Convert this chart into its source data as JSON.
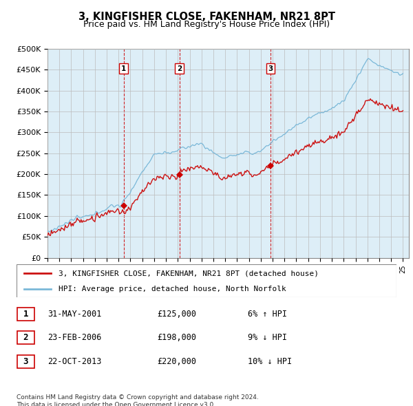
{
  "title": "3, KINGFISHER CLOSE, FAKENHAM, NR21 8PT",
  "subtitle": "Price paid vs. HM Land Registry's House Price Index (HPI)",
  "ylim": [
    0,
    500000
  ],
  "yticks": [
    0,
    50000,
    100000,
    150000,
    200000,
    250000,
    300000,
    350000,
    400000,
    450000,
    500000
  ],
  "ytick_labels": [
    "£0",
    "£50K",
    "£100K",
    "£150K",
    "£200K",
    "£250K",
    "£300K",
    "£350K",
    "£400K",
    "£450K",
    "£500K"
  ],
  "hpi_color": "#7ab8d8",
  "price_color": "#cc1111",
  "marker_color": "#cc0000",
  "plot_bg_color": "#ddeef7",
  "grid_color": "#bbbbbb",
  "sale_dates": [
    2001.42,
    2006.13,
    2013.81
  ],
  "sale_prices": [
    125000,
    198000,
    220000
  ],
  "sale_labels": [
    "1",
    "2",
    "3"
  ],
  "legend_line1": "3, KINGFISHER CLOSE, FAKENHAM, NR21 8PT (detached house)",
  "legend_line2": "HPI: Average price, detached house, North Norfolk",
  "table_rows": [
    [
      "1",
      "31-MAY-2001",
      "£125,000",
      "6% ↑ HPI"
    ],
    [
      "2",
      "23-FEB-2006",
      "£198,000",
      "9% ↓ HPI"
    ],
    [
      "3",
      "22-OCT-2013",
      "£220,000",
      "10% ↓ HPI"
    ]
  ],
  "footnote": "Contains HM Land Registry data © Crown copyright and database right 2024.\nThis data is licensed under the Open Government Licence v3.0.",
  "title_fontsize": 10.5,
  "subtitle_fontsize": 9,
  "axis_fontsize": 8,
  "legend_fontsize": 8,
  "table_fontsize": 8.5,
  "footnote_fontsize": 6.5
}
